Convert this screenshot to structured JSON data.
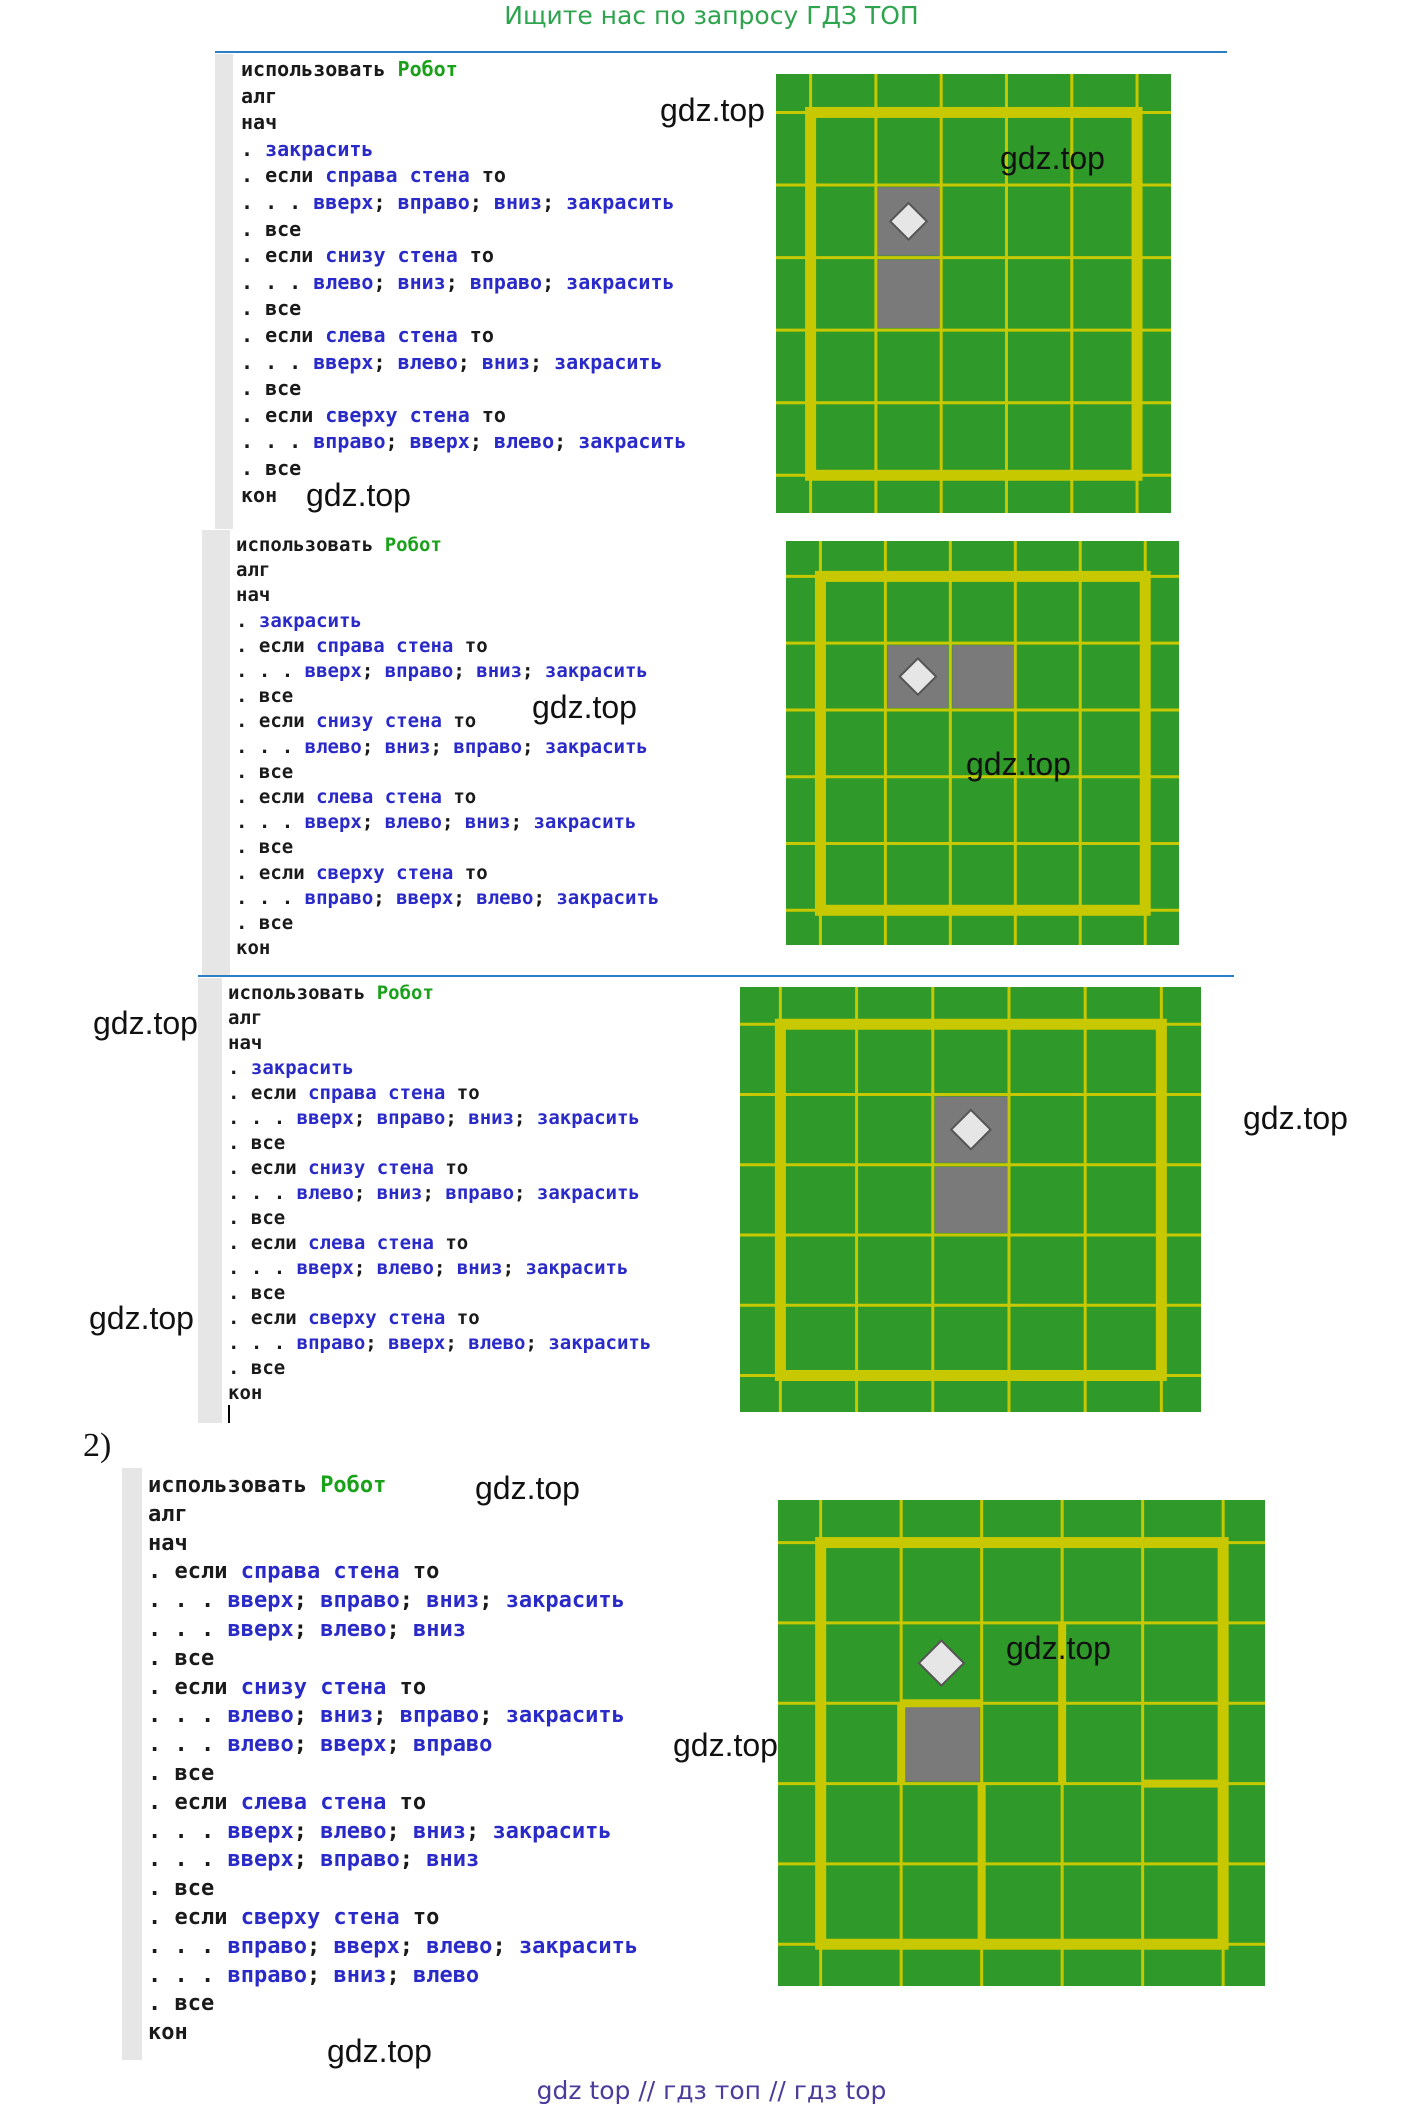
{
  "banner": "Ищите нас по запросу ГДЗ ТОП",
  "footer": "gdz top  //  гдз топ  //  гдз top",
  "section_label": "2)",
  "watermark": "gdz.top",
  "colors": {
    "field_green": "#2f9a2a",
    "wall_yellow": "#c8c800",
    "painted_gray": "#7a7a7a",
    "robot": "#e6e6e6",
    "keyword_green": "#1aa11a",
    "keyword_blue": "#2a2ac8"
  },
  "programs": [
    {
      "lines": [
        [
          [
            "t",
            "использовать "
          ],
          [
            "g",
            "Робот"
          ]
        ],
        [
          [
            "t",
            "алг"
          ]
        ],
        [
          [
            "t",
            "нач"
          ]
        ],
        [
          [
            "t",
            ". "
          ],
          [
            "b",
            "закрасить"
          ]
        ],
        [
          [
            "t",
            ". если "
          ],
          [
            "b",
            "справа стена"
          ],
          [
            "t",
            " то"
          ]
        ],
        [
          [
            "t",
            ". . . "
          ],
          [
            "b",
            "вверх"
          ],
          [
            "t",
            "; "
          ],
          [
            "b",
            "вправо"
          ],
          [
            "t",
            "; "
          ],
          [
            "b",
            "вниз"
          ],
          [
            "t",
            "; "
          ],
          [
            "b",
            "закрасить"
          ]
        ],
        [
          [
            "t",
            ". все"
          ]
        ],
        [
          [
            "t",
            ". если "
          ],
          [
            "b",
            "снизу стена"
          ],
          [
            "t",
            " то"
          ]
        ],
        [
          [
            "t",
            ". . . "
          ],
          [
            "b",
            "влево"
          ],
          [
            "t",
            "; "
          ],
          [
            "b",
            "вниз"
          ],
          [
            "t",
            "; "
          ],
          [
            "b",
            "вправо"
          ],
          [
            "t",
            "; "
          ],
          [
            "b",
            "закрасить"
          ]
        ],
        [
          [
            "t",
            ". все"
          ]
        ],
        [
          [
            "t",
            ". если "
          ],
          [
            "b",
            "слева стена"
          ],
          [
            "t",
            " то"
          ]
        ],
        [
          [
            "t",
            ". . . "
          ],
          [
            "b",
            "вверх"
          ],
          [
            "t",
            "; "
          ],
          [
            "b",
            "влево"
          ],
          [
            "t",
            "; "
          ],
          [
            "b",
            "вниз"
          ],
          [
            "t",
            "; "
          ],
          [
            "b",
            "закрасить"
          ]
        ],
        [
          [
            "t",
            ". все"
          ]
        ],
        [
          [
            "t",
            ". если "
          ],
          [
            "b",
            "сверху стена"
          ],
          [
            "t",
            " то"
          ]
        ],
        [
          [
            "t",
            ". . . "
          ],
          [
            "b",
            "вправо"
          ],
          [
            "t",
            "; "
          ],
          [
            "b",
            "вверх"
          ],
          [
            "t",
            "; "
          ],
          [
            "b",
            "влево"
          ],
          [
            "t",
            "; "
          ],
          [
            "b",
            "закрасить"
          ]
        ],
        [
          [
            "t",
            ". все"
          ]
        ],
        [
          [
            "t",
            "кон"
          ]
        ]
      ]
    },
    {
      "lines": [
        [
          [
            "t",
            "использовать "
          ],
          [
            "g",
            "Робот"
          ]
        ],
        [
          [
            "t",
            "алг"
          ]
        ],
        [
          [
            "t",
            "нач"
          ]
        ],
        [
          [
            "t",
            ". "
          ],
          [
            "b",
            "закрасить"
          ]
        ],
        [
          [
            "t",
            ". если "
          ],
          [
            "b",
            "справа стена"
          ],
          [
            "t",
            " то"
          ]
        ],
        [
          [
            "t",
            ". . . "
          ],
          [
            "b",
            "вверх"
          ],
          [
            "t",
            "; "
          ],
          [
            "b",
            "вправо"
          ],
          [
            "t",
            "; "
          ],
          [
            "b",
            "вниз"
          ],
          [
            "t",
            "; "
          ],
          [
            "b",
            "закрасить"
          ]
        ],
        [
          [
            "t",
            ". все"
          ]
        ],
        [
          [
            "t",
            ". если "
          ],
          [
            "b",
            "снизу стена"
          ],
          [
            "t",
            " то"
          ]
        ],
        [
          [
            "t",
            ". . . "
          ],
          [
            "b",
            "влево"
          ],
          [
            "t",
            "; "
          ],
          [
            "b",
            "вниз"
          ],
          [
            "t",
            "; "
          ],
          [
            "b",
            "вправо"
          ],
          [
            "t",
            "; "
          ],
          [
            "b",
            "закрасить"
          ]
        ],
        [
          [
            "t",
            ". все"
          ]
        ],
        [
          [
            "t",
            ". если "
          ],
          [
            "b",
            "слева стена"
          ],
          [
            "t",
            " то"
          ]
        ],
        [
          [
            "t",
            ". . . "
          ],
          [
            "b",
            "вверх"
          ],
          [
            "t",
            "; "
          ],
          [
            "b",
            "влево"
          ],
          [
            "t",
            "; "
          ],
          [
            "b",
            "вниз"
          ],
          [
            "t",
            "; "
          ],
          [
            "b",
            "закрасить"
          ]
        ],
        [
          [
            "t",
            ". все"
          ]
        ],
        [
          [
            "t",
            ". если "
          ],
          [
            "b",
            "сверху стена"
          ],
          [
            "t",
            " то"
          ]
        ],
        [
          [
            "t",
            ". . . "
          ],
          [
            "b",
            "вправо"
          ],
          [
            "t",
            "; "
          ],
          [
            "b",
            "вверх"
          ],
          [
            "t",
            "; "
          ],
          [
            "b",
            "влево"
          ],
          [
            "t",
            "; "
          ],
          [
            "b",
            "закрасить"
          ]
        ],
        [
          [
            "t",
            ". все"
          ]
        ],
        [
          [
            "t",
            "кон"
          ]
        ]
      ]
    },
    {
      "lines": [
        [
          [
            "t",
            "использовать "
          ],
          [
            "g",
            "Робот"
          ]
        ],
        [
          [
            "t",
            "алг"
          ]
        ],
        [
          [
            "t",
            "нач"
          ]
        ],
        [
          [
            "t",
            ". "
          ],
          [
            "b",
            "закрасить"
          ]
        ],
        [
          [
            "t",
            ". если "
          ],
          [
            "b",
            "справа стена"
          ],
          [
            "t",
            " то"
          ]
        ],
        [
          [
            "t",
            ". . . "
          ],
          [
            "b",
            "вверх"
          ],
          [
            "t",
            "; "
          ],
          [
            "b",
            "вправо"
          ],
          [
            "t",
            "; "
          ],
          [
            "b",
            "вниз"
          ],
          [
            "t",
            "; "
          ],
          [
            "b",
            "закрасить"
          ]
        ],
        [
          [
            "t",
            ". все"
          ]
        ],
        [
          [
            "t",
            ". если "
          ],
          [
            "b",
            "снизу стена"
          ],
          [
            "t",
            " то"
          ]
        ],
        [
          [
            "t",
            ". . . "
          ],
          [
            "b",
            "влево"
          ],
          [
            "t",
            "; "
          ],
          [
            "b",
            "вниз"
          ],
          [
            "t",
            "; "
          ],
          [
            "b",
            "вправо"
          ],
          [
            "t",
            "; "
          ],
          [
            "b",
            "закрасить"
          ]
        ],
        [
          [
            "t",
            ". все"
          ]
        ],
        [
          [
            "t",
            ". если "
          ],
          [
            "b",
            "слева стена"
          ],
          [
            "t",
            " то"
          ]
        ],
        [
          [
            "t",
            ". . . "
          ],
          [
            "b",
            "вверх"
          ],
          [
            "t",
            "; "
          ],
          [
            "b",
            "влево"
          ],
          [
            "t",
            "; "
          ],
          [
            "b",
            "вниз"
          ],
          [
            "t",
            "; "
          ],
          [
            "b",
            "закрасить"
          ]
        ],
        [
          [
            "t",
            ". все"
          ]
        ],
        [
          [
            "t",
            ". если "
          ],
          [
            "b",
            "сверху стена"
          ],
          [
            "t",
            " то"
          ]
        ],
        [
          [
            "t",
            ". . . "
          ],
          [
            "b",
            "вправо"
          ],
          [
            "t",
            "; "
          ],
          [
            "b",
            "вверх"
          ],
          [
            "t",
            "; "
          ],
          [
            "b",
            "влево"
          ],
          [
            "t",
            "; "
          ],
          [
            "b",
            "закрасить"
          ]
        ],
        [
          [
            "t",
            ". все"
          ]
        ],
        [
          [
            "t",
            "кон"
          ]
        ]
      ]
    },
    {
      "lines": [
        [
          [
            "t",
            "использовать "
          ],
          [
            "g",
            "Робот"
          ]
        ],
        [
          [
            "t",
            "алг"
          ]
        ],
        [
          [
            "t",
            "нач"
          ]
        ],
        [
          [
            "t",
            ". если "
          ],
          [
            "b",
            "справа стена"
          ],
          [
            "t",
            " то"
          ]
        ],
        [
          [
            "t",
            ". . . "
          ],
          [
            "b",
            "вверх"
          ],
          [
            "t",
            "; "
          ],
          [
            "b",
            "вправо"
          ],
          [
            "t",
            "; "
          ],
          [
            "b",
            "вниз"
          ],
          [
            "t",
            "; "
          ],
          [
            "b",
            "закрасить"
          ]
        ],
        [
          [
            "t",
            ". . . "
          ],
          [
            "b",
            "вверх"
          ],
          [
            "t",
            "; "
          ],
          [
            "b",
            "влево"
          ],
          [
            "t",
            "; "
          ],
          [
            "b",
            "вниз"
          ]
        ],
        [
          [
            "t",
            ". все"
          ]
        ],
        [
          [
            "t",
            ". если "
          ],
          [
            "b",
            "снизу стена"
          ],
          [
            "t",
            " то"
          ]
        ],
        [
          [
            "t",
            ". . . "
          ],
          [
            "b",
            "влево"
          ],
          [
            "t",
            "; "
          ],
          [
            "b",
            "вниз"
          ],
          [
            "t",
            "; "
          ],
          [
            "b",
            "вправо"
          ],
          [
            "t",
            "; "
          ],
          [
            "b",
            "закрасить"
          ]
        ],
        [
          [
            "t",
            ". . . "
          ],
          [
            "b",
            "влево"
          ],
          [
            "t",
            "; "
          ],
          [
            "b",
            "вверх"
          ],
          [
            "t",
            "; "
          ],
          [
            "b",
            "вправо"
          ]
        ],
        [
          [
            "t",
            ". все"
          ]
        ],
        [
          [
            "t",
            ". если "
          ],
          [
            "b",
            "слева стена"
          ],
          [
            "t",
            " то"
          ]
        ],
        [
          [
            "t",
            ". . . "
          ],
          [
            "b",
            "вверх"
          ],
          [
            "t",
            "; "
          ],
          [
            "b",
            "влево"
          ],
          [
            "t",
            "; "
          ],
          [
            "b",
            "вниз"
          ],
          [
            "t",
            "; "
          ],
          [
            "b",
            "закрасить"
          ]
        ],
        [
          [
            "t",
            ". . . "
          ],
          [
            "b",
            "вверх"
          ],
          [
            "t",
            "; "
          ],
          [
            "b",
            "вправо"
          ],
          [
            "t",
            "; "
          ],
          [
            "b",
            "вниз"
          ]
        ],
        [
          [
            "t",
            ". все"
          ]
        ],
        [
          [
            "t",
            ". если "
          ],
          [
            "b",
            "сверху стена"
          ],
          [
            "t",
            " то"
          ]
        ],
        [
          [
            "t",
            ". . . "
          ],
          [
            "b",
            "вправо"
          ],
          [
            "t",
            "; "
          ],
          [
            "b",
            "вверх"
          ],
          [
            "t",
            "; "
          ],
          [
            "b",
            "влево"
          ],
          [
            "t",
            "; "
          ],
          [
            "b",
            "закрасить"
          ]
        ],
        [
          [
            "t",
            ". . . "
          ],
          [
            "b",
            "вправо"
          ],
          [
            "t",
            "; "
          ],
          [
            "b",
            "вниз"
          ],
          [
            "t",
            "; "
          ],
          [
            "b",
            "влево"
          ]
        ],
        [
          [
            "t",
            ". все"
          ]
        ],
        [
          [
            "t",
            "кон"
          ]
        ]
      ]
    }
  ],
  "fields": [
    {
      "cols": 5,
      "rows": 5,
      "painted": [
        [
          1,
          1
        ],
        [
          1,
          2
        ]
      ],
      "robot": [
        1,
        1
      ],
      "inner_walls": []
    },
    {
      "cols": 5,
      "rows": 5,
      "painted": [
        [
          1,
          1
        ],
        [
          2,
          1
        ]
      ],
      "robot": [
        1,
        1
      ],
      "inner_walls": []
    },
    {
      "cols": 5,
      "rows": 5,
      "painted": [
        [
          2,
          1
        ],
        [
          2,
          2
        ]
      ],
      "robot": [
        2,
        1
      ],
      "inner_walls": []
    },
    {
      "cols": 5,
      "rows": 5,
      "painted": [
        [
          1,
          2
        ]
      ],
      "robot": [
        1,
        1
      ],
      "inner_walls": [
        {
          "type": "h",
          "after_row": 1,
          "col": 1
        },
        {
          "type": "v",
          "after_col": 2,
          "row": 1
        },
        {
          "type": "v",
          "after_col": 0,
          "row": 2
        },
        {
          "type": "v",
          "after_col": 1,
          "row": 3
        },
        {
          "type": "v",
          "after_col": 1,
          "row": 4
        },
        {
          "type": "h",
          "after_row": 2,
          "col": 4
        },
        {
          "type": "v",
          "after_col": 2,
          "row": 2
        }
      ]
    }
  ]
}
